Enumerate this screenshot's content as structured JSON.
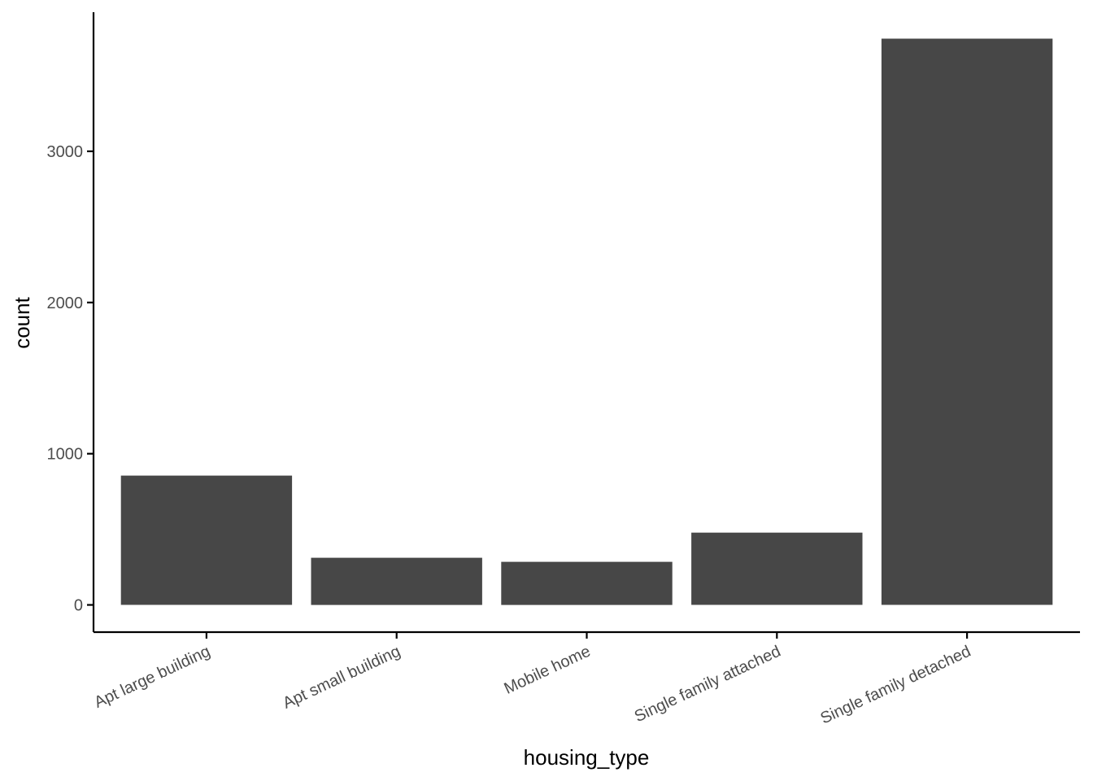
{
  "chart_data": {
    "type": "bar",
    "title": "",
    "xlabel": "housing_type",
    "ylabel": "count",
    "categories": [
      "Apt large building",
      "Apt small building",
      "Mobile home",
      "Single family attached",
      "Single family detached"
    ],
    "values": [
      855,
      312,
      285,
      478,
      3745
    ],
    "ylim": [
      -180,
      3920
    ],
    "yticks": [
      0,
      1000,
      2000,
      3000
    ],
    "grid": false,
    "legend": "none",
    "bar_color": "#474747",
    "axis_color": "#000000",
    "tick_label_color": "#4d4d4d"
  }
}
